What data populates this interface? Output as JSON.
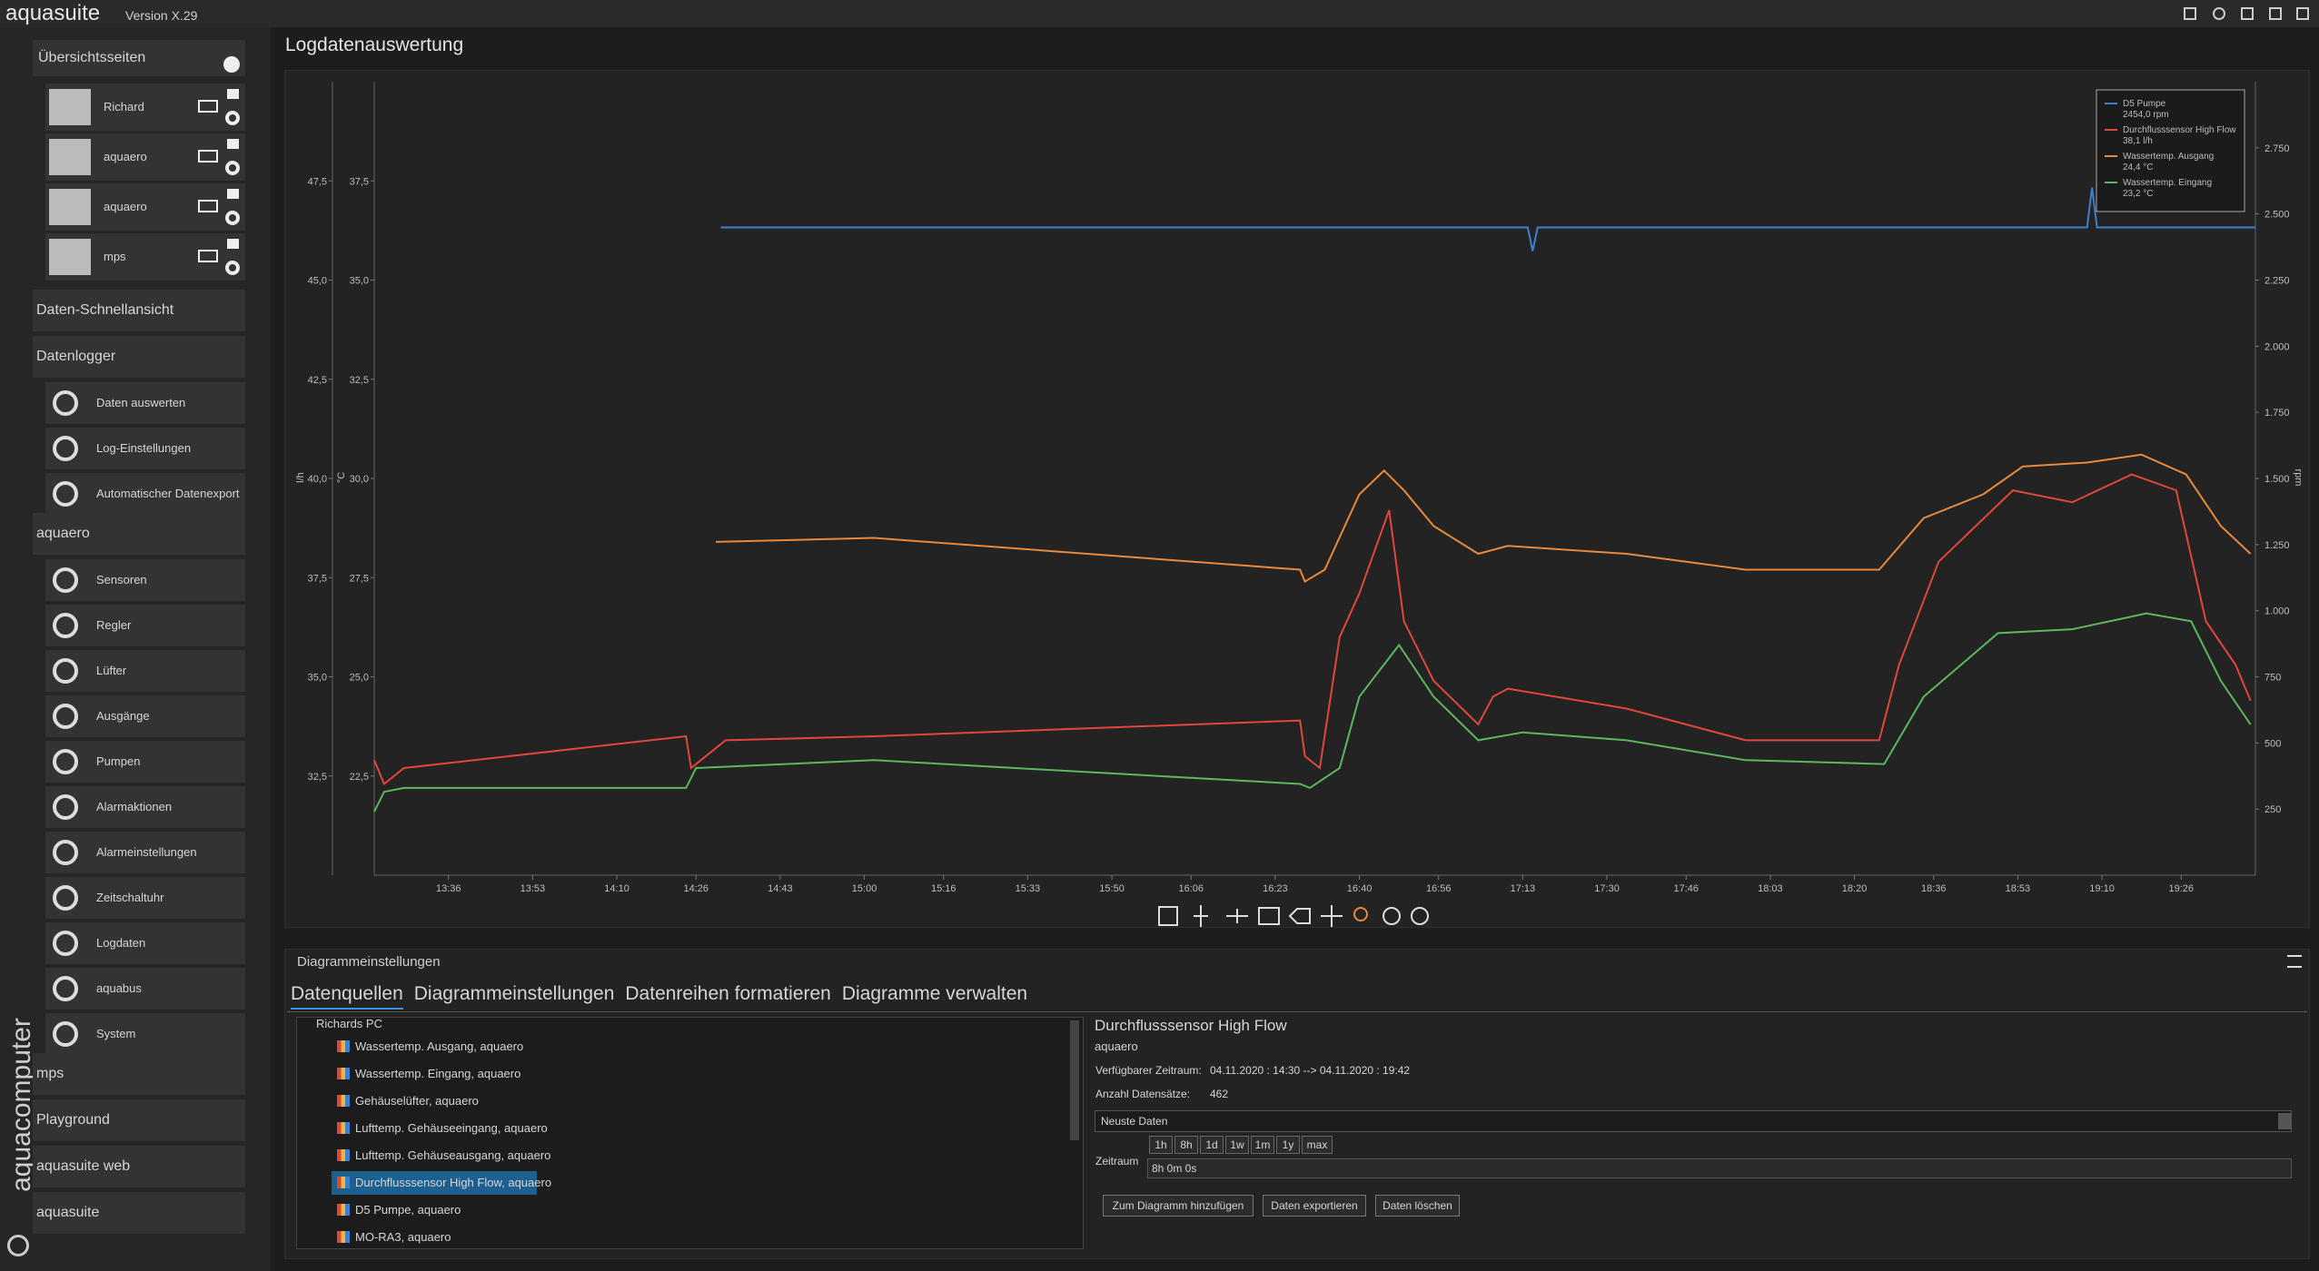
{
  "window": {
    "app_name": "aquasuite",
    "version": "Version X.29",
    "brand": "aquacomputer"
  },
  "sidebar": {
    "overview_title": "Übersichtsseiten",
    "overview_pages": [
      "Richard",
      "aquaero",
      "aquaero",
      "mps"
    ],
    "groups": [
      {
        "title": "Daten-Schnellansicht",
        "items": []
      },
      {
        "title": "Datenlogger",
        "items": [
          "Daten auswerten",
          "Log-Einstellungen",
          "Automatischer Datenexport"
        ]
      },
      {
        "title": "aquaero",
        "items": [
          "Sensoren",
          "Regler",
          "Lüfter",
          "Ausgänge",
          "Pumpen",
          "Alarmaktionen",
          "Alarmeinstellungen",
          "Zeitschaltuhr",
          "Logdaten",
          "aquabus",
          "System"
        ]
      },
      {
        "title": "mps",
        "items": []
      },
      {
        "title": "Playground",
        "items": []
      },
      {
        "title": "aquasuite web",
        "items": []
      },
      {
        "title": "aquasuite",
        "items": []
      }
    ]
  },
  "page_title": "Logdatenauswertung",
  "chart_data": {
    "type": "line",
    "ylabel": "l/h",
    "y2label": "°C",
    "y3label": "rpm",
    "xlim": [
      "13:21",
      "19:41"
    ],
    "xticks": [
      "13:36",
      "13:53",
      "14:10",
      "14:26",
      "14:43",
      "15:00",
      "15:16",
      "15:33",
      "15:50",
      "16:06",
      "16:23",
      "16:40",
      "16:56",
      "17:13",
      "17:30",
      "17:46",
      "18:03",
      "18:20",
      "18:36",
      "18:53",
      "19:10",
      "19:26"
    ],
    "ylim": [
      30,
      50
    ],
    "yticks": [
      {
        "value": 32.5,
        "label": "32,5"
      },
      {
        "value": 35,
        "label": "35,0"
      },
      {
        "value": 37.5,
        "label": "37,5"
      },
      {
        "value": 40,
        "label": "40,0"
      },
      {
        "value": 42.5,
        "label": "42,5"
      },
      {
        "value": 45,
        "label": "45,0"
      },
      {
        "value": 47.5,
        "label": "47,5"
      }
    ],
    "y2lim": [
      20,
      40
    ],
    "y2ticks": [
      {
        "value": 22.5,
        "label": "22,5"
      },
      {
        "value": 25,
        "label": "25,0"
      },
      {
        "value": 27.5,
        "label": "27,5"
      },
      {
        "value": 30,
        "label": "30,0"
      },
      {
        "value": 32.5,
        "label": "32,5"
      },
      {
        "value": 35,
        "label": "35,0"
      },
      {
        "value": 37.5,
        "label": "37,5"
      }
    ],
    "y3lim": [
      0,
      3000
    ],
    "y3ticks": [
      250,
      500,
      750,
      {
        "value": 1000,
        "label": "1.000"
      },
      {
        "value": 1250,
        "label": "1.250"
      },
      {
        "value": 1500,
        "label": "1.500"
      },
      {
        "value": 1750,
        "label": "1.750"
      },
      {
        "value": 2000,
        "label": "2.000"
      },
      {
        "value": 2250,
        "label": "2.250"
      },
      {
        "value": 2500,
        "label": "2.500"
      },
      {
        "value": 2750,
        "label": "2.750"
      }
    ],
    "series": [
      {
        "name": "D5 Pumpe",
        "legend_value": "2454,0 rpm",
        "color": "#3f7fd0",
        "axis": "y3",
        "x": [
          "14:31",
          "17:14",
          "17:15",
          "17:16",
          "19:07",
          "19:08",
          "19:09",
          "19:41"
        ],
        "values": [
          2449,
          2449,
          2360,
          2449,
          2449,
          2600,
          2449,
          2449
        ]
      },
      {
        "name": "Durchflusssensor High Flow",
        "legend_value": "38,1 l/h",
        "color": "#e0473b",
        "axis": "y",
        "x": [
          "13:21",
          "13:23",
          "13:27",
          "14:24",
          "14:25",
          "14:32",
          "15:02",
          "16:28",
          "16:29",
          "16:32",
          "16:36",
          "16:40",
          "16:46",
          "16:49",
          "16:55",
          "17:04",
          "17:07",
          "17:10",
          "17:34",
          "17:58",
          "18:25",
          "18:29",
          "18:37",
          "18:52",
          "19:04",
          "19:16",
          "19:25",
          "19:31",
          "19:37",
          "19:40"
        ],
        "values": [
          32.9,
          32.3,
          32.7,
          33.5,
          32.7,
          33.4,
          33.5,
          33.9,
          33.0,
          32.7,
          36.0,
          37.1,
          39.2,
          36.4,
          34.9,
          33.8,
          34.5,
          34.7,
          34.2,
          33.4,
          33.4,
          35.3,
          37.9,
          39.7,
          39.4,
          40.1,
          39.7,
          36.4,
          35.3,
          34.4
        ]
      },
      {
        "name": "Wassertemp. Ausgang",
        "legend_value": "24,4 °C",
        "color": "#e8893c",
        "axis": "y2",
        "x": [
          "14:30",
          "15:02",
          "16:28",
          "16:29",
          "16:33",
          "16:40",
          "16:45",
          "16:49",
          "16:55",
          "17:04",
          "17:10",
          "17:34",
          "17:58",
          "18:25",
          "18:34",
          "18:46",
          "18:54",
          "19:07",
          "19:18",
          "19:27",
          "19:34",
          "19:40"
        ],
        "values": [
          28.4,
          28.5,
          27.7,
          27.4,
          27.7,
          29.6,
          30.2,
          29.7,
          28.8,
          28.1,
          28.3,
          28.1,
          27.7,
          27.7,
          29.0,
          29.6,
          30.3,
          30.4,
          30.6,
          30.1,
          28.8,
          28.1
        ]
      },
      {
        "name": "Wassertemp. Eingang",
        "legend_value": "23,2 °C",
        "color": "#5cb85c",
        "axis": "y2",
        "x": [
          "13:21",
          "13:23",
          "13:27",
          "14:24",
          "14:26",
          "15:02",
          "16:28",
          "16:30",
          "16:36",
          "16:40",
          "16:48",
          "16:55",
          "17:04",
          "17:13",
          "17:34",
          "17:58",
          "18:26",
          "18:34",
          "18:49",
          "19:04",
          "19:19",
          "19:28",
          "19:34",
          "19:40"
        ],
        "values": [
          21.6,
          22.1,
          22.2,
          22.2,
          22.7,
          22.9,
          22.3,
          22.2,
          22.7,
          24.5,
          25.8,
          24.5,
          23.4,
          23.6,
          23.4,
          22.9,
          22.8,
          24.5,
          26.1,
          26.2,
          26.6,
          26.4,
          24.9,
          23.8
        ]
      }
    ]
  },
  "settings_panel": {
    "title": "Diagrammeinstellungen",
    "tabs": [
      "Datenquellen",
      "Diagrammeinstellungen",
      "Datenreihen formatieren",
      "Diagramme verwalten"
    ],
    "tree": {
      "root": "Richards PC",
      "items": [
        "Wassertemp. Ausgang, aquaero",
        "Wassertemp. Eingang, aquaero",
        "Gehäuselüfter, aquaero",
        "Lufttemp. Gehäuseeingang, aquaero",
        "Lufttemp. Gehäuseausgang, aquaero",
        "Durchflusssensor High Flow, aquaero",
        "D5 Pumpe, aquaero",
        "MO-RA3, aquaero"
      ]
    },
    "details": {
      "title": "Durchflusssensor High Flow",
      "subtitle": "aquaero",
      "fields": [
        {
          "label": "Verfügbarer Zeitraum:",
          "value": "04.11.2020 : 14:30 --> 04.11.2020 : 19:42"
        },
        {
          "label": "Anzahl Datensätze:",
          "value": "462"
        }
      ],
      "mode": "Neuste Daten",
      "range_label": "Zeitraum",
      "range_buttons": [
        "1h",
        "8h",
        "1d",
        "1w",
        "1m",
        "1y",
        "max"
      ],
      "range_value": "8h 0m 0s",
      "actions": [
        "Zum Diagramm hinzufügen",
        "Daten exportieren",
        "Daten löschen"
      ]
    }
  }
}
